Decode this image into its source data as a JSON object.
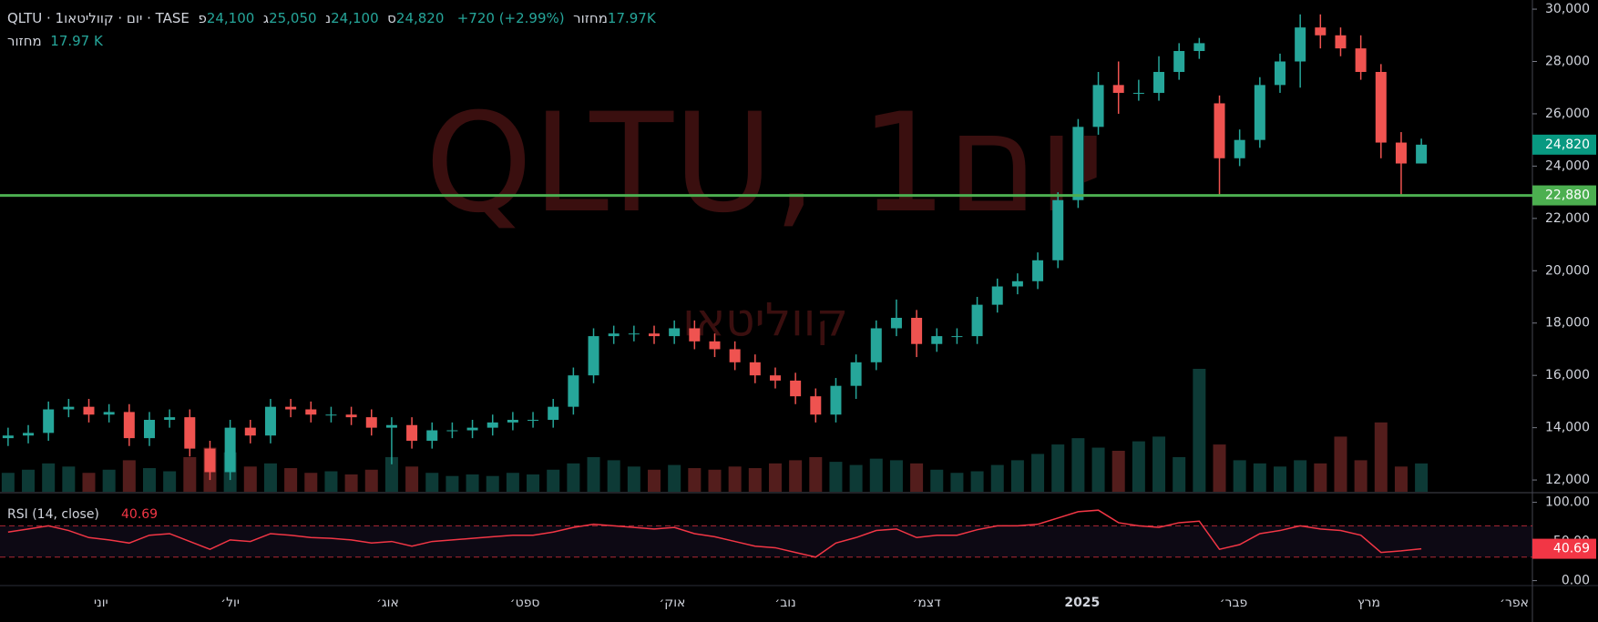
{
  "header": {
    "symbol": "QLTU · 1יום · קווליטאו · TASE",
    "ohlc": [
      {
        "key": "פ",
        "value": "24,100"
      },
      {
        "key": "ג",
        "value": "25,050"
      },
      {
        "key": "נ",
        "value": "24,100"
      },
      {
        "key": "ס",
        "value": "24,820"
      }
    ],
    "change": "+720 (+2.99%)",
    "volume_key": "מחזור",
    "volume_value": "17.97K",
    "volume_line_key": "מחזור",
    "volume_line_value": "17.97 K"
  },
  "watermark": {
    "title": "QLTU, 1יום",
    "name": "קווליטאו"
  },
  "chart_data": {
    "type": "candlestick",
    "up_color": "#26a69a",
    "down_color": "#ef5350",
    "xlim": [
      -0.4,
      75.5
    ],
    "xticks": [
      {
        "value": 4.6,
        "label": "יוני"
      },
      {
        "value": 11.0,
        "label": "יול׳"
      },
      {
        "value": 18.8,
        "label": "אוג׳"
      },
      {
        "value": 25.6,
        "label": "ספט׳"
      },
      {
        "value": 32.9,
        "label": "אוק׳"
      },
      {
        "value": 38.5,
        "label": "נוב׳"
      },
      {
        "value": 45.5,
        "label": "דצמ׳"
      },
      {
        "value": 53.2,
        "label": "2025"
      },
      {
        "value": 60.7,
        "label": "פבר׳"
      },
      {
        "value": 67.4,
        "label": "מרץ"
      },
      {
        "value": 74.6,
        "label": "אפר׳"
      }
    ],
    "ylim": [
      11550,
      30350
    ],
    "yticks": [
      {
        "value": 12000,
        "label": "12,000"
      },
      {
        "value": 14000,
        "label": "14,000"
      },
      {
        "value": 16000,
        "label": "16,000"
      },
      {
        "value": 18000,
        "label": "18,000"
      },
      {
        "value": 20000,
        "label": "20,000"
      },
      {
        "value": 22000,
        "label": "22,000"
      },
      {
        "value": 24000,
        "label": "24,000"
      },
      {
        "value": 26000,
        "label": "26,000"
      },
      {
        "value": 28000,
        "label": "28,000"
      },
      {
        "value": 30000,
        "label": "30,000"
      }
    ],
    "open": [
      13600,
      13700,
      13800,
      14700,
      14800,
      14500,
      14600,
      13600,
      14300,
      14400,
      13200,
      12300,
      14000,
      13700,
      14800,
      14700,
      14500,
      14500,
      14400,
      14000,
      14100,
      13500,
      13900,
      13900,
      14000,
      14200,
      14300,
      14300,
      14800,
      16000,
      17500,
      17600,
      17600,
      17500,
      17800,
      17300,
      17000,
      16500,
      16000,
      15800,
      15200,
      14500,
      15600,
      16500,
      17800,
      18200,
      17200,
      17500,
      17500,
      18700,
      19400,
      19600,
      20400,
      22700,
      25500,
      27100,
      26800,
      26800,
      27600,
      28400,
      26400,
      24300,
      25000,
      27100,
      28000,
      29300,
      29000,
      28500,
      27600,
      24900,
      24100
    ],
    "high": [
      14000,
      14100,
      15000,
      15100,
      15100,
      14900,
      14900,
      14600,
      14700,
      14700,
      13500,
      14300,
      14300,
      15100,
      15100,
      15000,
      14800,
      14800,
      14700,
      14400,
      14400,
      14200,
      14200,
      14300,
      14500,
      14600,
      14600,
      15100,
      16300,
      17800,
      17900,
      17900,
      17900,
      18100,
      18100,
      17600,
      17300,
      16800,
      16300,
      16100,
      15500,
      15900,
      16800,
      18100,
      18900,
      18500,
      17800,
      17800,
      19000,
      19700,
      19900,
      20700,
      23000,
      25800,
      27600,
      28000,
      27300,
      28200,
      28700,
      28900,
      26700,
      25400,
      27400,
      28300,
      29800,
      29800,
      29300,
      29000,
      27900,
      25300,
      25050
    ],
    "low": [
      13300,
      13400,
      13500,
      14400,
      14200,
      14200,
      13300,
      13300,
      14000,
      12900,
      12000,
      12000,
      13400,
      13400,
      14400,
      14200,
      14200,
      14100,
      13700,
      12600,
      13200,
      13200,
      13600,
      13600,
      13700,
      13900,
      14000,
      14000,
      14500,
      15700,
      17200,
      17300,
      17200,
      17200,
      17000,
      16700,
      16200,
      15700,
      15500,
      14900,
      14200,
      14200,
      15100,
      16200,
      17500,
      16700,
      16900,
      17200,
      17200,
      18400,
      19100,
      19300,
      20100,
      22400,
      25200,
      26000,
      26500,
      26500,
      27300,
      28100,
      22880,
      24000,
      24700,
      26800,
      27000,
      28500,
      28200,
      27300,
      24300,
      22880,
      24100
    ],
    "close": [
      13700,
      13800,
      14700,
      14800,
      14500,
      14600,
      13600,
      14300,
      14400,
      13200,
      12300,
      14000,
      13700,
      14800,
      14700,
      14500,
      14500,
      14400,
      14000,
      14100,
      13500,
      13900,
      13900,
      14000,
      14200,
      14300,
      14300,
      14800,
      16000,
      17500,
      17600,
      17600,
      17500,
      17800,
      17300,
      17000,
      16500,
      16000,
      15800,
      15200,
      14500,
      15600,
      16500,
      17800,
      18200,
      17200,
      17500,
      17500,
      18700,
      19400,
      19600,
      20400,
      22700,
      25500,
      27100,
      26800,
      26800,
      27600,
      28400,
      28700,
      24300,
      25000,
      27100,
      28000,
      29300,
      29000,
      28500,
      27600,
      24900,
      24100,
      24820
    ],
    "volume": [
      12,
      14,
      18,
      16,
      12,
      14,
      20,
      15,
      13,
      22,
      28,
      25,
      16,
      18,
      15,
      12,
      13,
      11,
      14,
      22,
      16,
      12,
      10,
      11,
      10,
      12,
      11,
      14,
      18,
      22,
      20,
      16,
      14,
      17,
      15,
      14,
      16,
      15,
      18,
      20,
      22,
      19,
      17,
      21,
      20,
      18,
      14,
      12,
      13,
      17,
      20,
      24,
      30,
      34,
      28,
      26,
      32,
      35,
      22,
      78,
      30,
      20,
      18,
      16,
      20,
      18,
      35,
      20,
      44,
      16,
      17.97
    ],
    "price_line": {
      "value": 22880,
      "label": "22,880",
      "color": "#4caf50"
    },
    "last_price": {
      "value": 24820,
      "label": "24,820",
      "color": "#089981"
    },
    "rsi": {
      "name": "RSI (14, close)",
      "color": "#f23645",
      "ylim": [
        -4,
        110
      ],
      "yticks": [
        {
          "value": 100,
          "label": "100.00"
        },
        {
          "value": 50,
          "label": "50.00"
        },
        {
          "value": 0,
          "label": "0.00"
        }
      ],
      "bands": [
        70,
        30
      ],
      "values": [
        62,
        66,
        70,
        64,
        55,
        52,
        48,
        58,
        60,
        50,
        40,
        52,
        50,
        60,
        58,
        55,
        54,
        52,
        48,
        50,
        44,
        50,
        52,
        54,
        56,
        58,
        58,
        62,
        68,
        72,
        70,
        68,
        66,
        68,
        60,
        56,
        50,
        44,
        42,
        36,
        30,
        48,
        55,
        64,
        66,
        55,
        58,
        58,
        65,
        70,
        70,
        72,
        80,
        88,
        90,
        74,
        70,
        68,
        74,
        76,
        40,
        46,
        60,
        64,
        70,
        66,
        64,
        58,
        36,
        38,
        40.69
      ],
      "last_label": "40.69"
    }
  }
}
